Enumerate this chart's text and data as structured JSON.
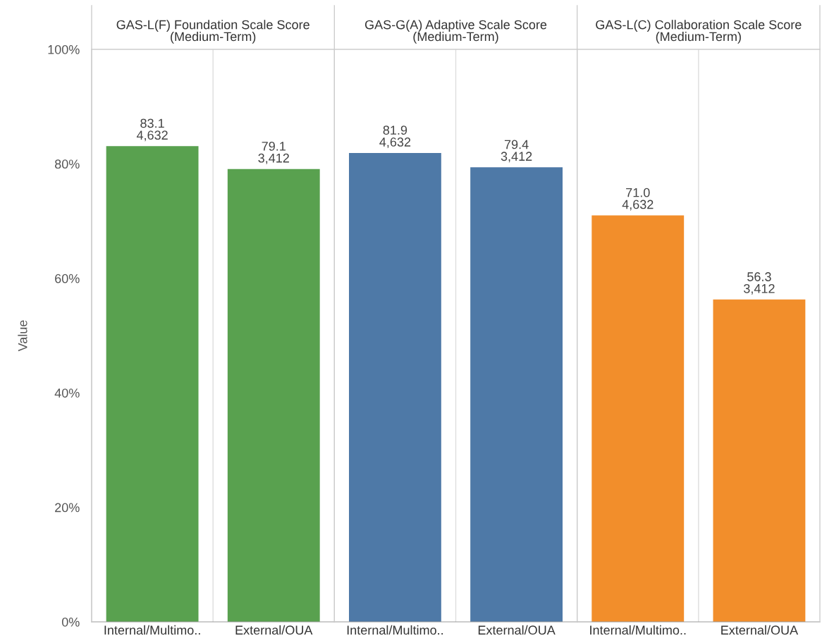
{
  "chart_data": [
    {
      "type": "bar",
      "title": "GAS-L(F) Foundation Scale Score\n(Medium-Term)",
      "ylabel": "Value",
      "categories": [
        "Internal/Multimo..",
        "External/OUA"
      ],
      "values": [
        83.1,
        79.1
      ],
      "color": "#59a14f",
      "value_labels": [
        "83.1\n4,632",
        "79.1\n3,412"
      ],
      "ylim": [
        0,
        100
      ],
      "yticks": [
        {
          "value": 0,
          "label": "0%"
        },
        {
          "value": 20,
          "label": "20%"
        },
        {
          "value": 40,
          "label": "40%"
        },
        {
          "value": 60,
          "label": "60%"
        },
        {
          "value": 80,
          "label": "80%"
        },
        {
          "value": 100,
          "label": "100%"
        }
      ]
    },
    {
      "type": "bar",
      "title": "GAS-G(A) Adaptive Scale Score\n(Medium-Term)",
      "categories": [
        "Internal/Multimo..",
        "External/OUA"
      ],
      "values": [
        81.9,
        79.4
      ],
      "color": "#4e79a7",
      "value_labels": [
        "81.9\n4,632",
        "79.4\n3,412"
      ],
      "ylim": [
        0,
        100
      ],
      "tick_labels": "x"
    },
    {
      "type": "bar",
      "title": "GAS-L(C) Collaboration Scale Score\n(Medium-Term)",
      "categories": [
        "Internal/Multimo..",
        "External/OUA"
      ],
      "values": [
        71.0,
        56.3
      ],
      "color": "#f28e2b",
      "value_labels": [
        "71.0\n4,632",
        "56.3\n3,412"
      ],
      "ylim": [
        0,
        100
      ],
      "tick_labels": "x"
    }
  ]
}
